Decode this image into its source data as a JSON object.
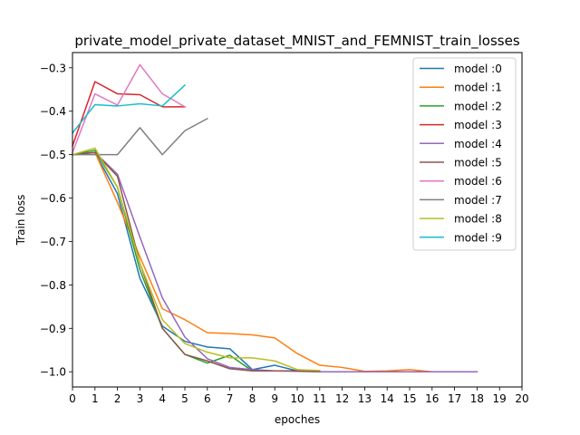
{
  "chart_data": {
    "type": "line",
    "title": "private_model_private_dataset_MNIST_and_FEMNIST_train_losses",
    "xlabel": "epoches",
    "ylabel": "Train loss",
    "xlim": [
      0,
      20
    ],
    "ylim": [
      -1.035,
      -0.265
    ],
    "xticks": [
      "0",
      "1",
      "2",
      "3",
      "4",
      "5",
      "6",
      "7",
      "8",
      "9",
      "10",
      "11",
      "12",
      "13",
      "14",
      "15",
      "16",
      "17",
      "18",
      "19",
      "20"
    ],
    "yticks": [
      {
        "value": -0.3,
        "label": "−0.3"
      },
      {
        "value": -0.4,
        "label": "−0.4"
      },
      {
        "value": -0.5,
        "label": "−0.5"
      },
      {
        "value": -0.6,
        "label": "−0.6"
      },
      {
        "value": -0.7,
        "label": "−0.7"
      },
      {
        "value": -0.8,
        "label": "−0.8"
      },
      {
        "value": -0.9,
        "label": "−0.9"
      },
      {
        "value": -1.0,
        "label": "−1.0"
      }
    ],
    "grid": false,
    "legend_position": "top-right",
    "series": [
      {
        "name": "model :0",
        "color": "#1f77b4",
        "x": [
          0,
          1,
          2,
          3,
          4,
          5,
          6,
          7,
          8,
          9,
          10,
          11
        ],
        "y": [
          -0.5,
          -0.495,
          -0.59,
          -0.785,
          -0.895,
          -0.93,
          -0.943,
          -0.947,
          -0.995,
          -0.985,
          -0.998,
          -1.0
        ]
      },
      {
        "name": "model :1",
        "color": "#ff7f0e",
        "x": [
          0,
          1,
          2,
          3,
          4,
          5,
          6,
          7,
          8,
          9,
          10,
          11,
          12,
          13,
          14,
          15,
          16,
          17,
          18
        ],
        "y": [
          -0.5,
          -0.495,
          -0.61,
          -0.735,
          -0.855,
          -0.88,
          -0.91,
          -0.912,
          -0.915,
          -0.922,
          -0.958,
          -0.985,
          -0.99,
          -0.999,
          -0.998,
          -0.995,
          -1.0,
          -1.0,
          -1.0
        ]
      },
      {
        "name": "model :2",
        "color": "#2ca02c",
        "x": [
          0,
          1,
          2,
          3,
          4,
          5,
          6,
          7,
          8,
          9,
          10,
          11
        ],
        "y": [
          -0.5,
          -0.49,
          -0.575,
          -0.765,
          -0.9,
          -0.96,
          -0.98,
          -0.962,
          -0.998,
          -0.998,
          -0.998,
          -0.999
        ]
      },
      {
        "name": "model :3",
        "color": "#d62728",
        "x": [
          0,
          1,
          2,
          3,
          4,
          5
        ],
        "y": [
          -0.48,
          -0.332,
          -0.36,
          -0.362,
          -0.39,
          -0.39
        ]
      },
      {
        "name": "model :4",
        "color": "#9467bd",
        "x": [
          0,
          1,
          2,
          3,
          4,
          5,
          6,
          7,
          8,
          9,
          10,
          11,
          12,
          13,
          14,
          15,
          16,
          17,
          18
        ],
        "y": [
          -0.5,
          -0.495,
          -0.545,
          -0.69,
          -0.83,
          -0.92,
          -0.97,
          -0.99,
          -0.995,
          -0.998,
          -0.999,
          -1.0,
          -1.0,
          -1.0,
          -1.0,
          -1.0,
          -1.0,
          -1.0,
          -1.0
        ]
      },
      {
        "name": "model :5",
        "color": "#8c564b",
        "x": [
          0,
          1,
          2,
          3,
          4,
          5,
          6,
          7,
          8,
          9,
          10,
          11
        ],
        "y": [
          -0.5,
          -0.495,
          -0.55,
          -0.75,
          -0.9,
          -0.96,
          -0.975,
          -0.993,
          -0.998,
          -0.998,
          -0.998,
          -0.999
        ]
      },
      {
        "name": "model :6",
        "color": "#e377c2",
        "x": [
          0,
          1,
          2,
          3,
          4,
          5
        ],
        "y": [
          -0.495,
          -0.36,
          -0.386,
          -0.293,
          -0.36,
          -0.39
        ]
      },
      {
        "name": "model :7",
        "color": "#7f7f7f",
        "x": [
          0,
          1,
          2,
          3,
          4,
          5,
          6
        ],
        "y": [
          -0.5,
          -0.5,
          -0.5,
          -0.438,
          -0.5,
          -0.445,
          -0.417
        ]
      },
      {
        "name": "model :8",
        "color": "#bcbd22",
        "x": [
          0,
          1,
          2,
          3,
          4,
          5,
          6,
          7,
          8,
          9,
          10,
          11
        ],
        "y": [
          -0.5,
          -0.485,
          -0.575,
          -0.75,
          -0.88,
          -0.935,
          -0.955,
          -0.968,
          -0.968,
          -0.975,
          -0.995,
          -0.997
        ]
      },
      {
        "name": "model :9",
        "color": "#17becf",
        "x": [
          0,
          1,
          2,
          3,
          4,
          5
        ],
        "y": [
          -0.45,
          -0.385,
          -0.388,
          -0.383,
          -0.388,
          -0.34
        ]
      }
    ]
  }
}
